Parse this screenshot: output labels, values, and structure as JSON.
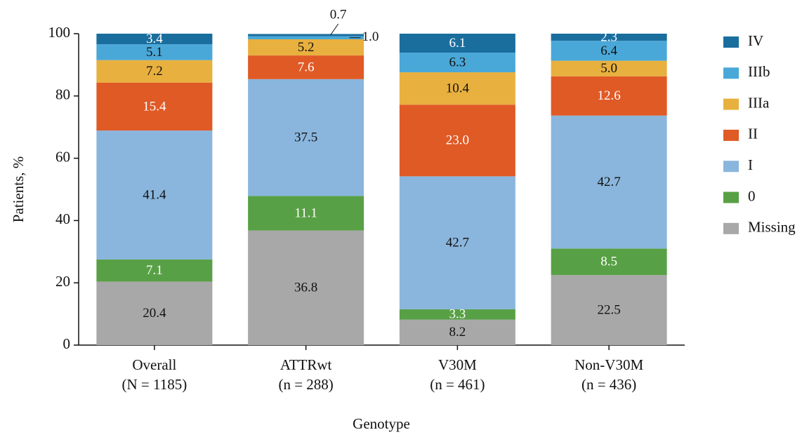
{
  "chart_data": {
    "type": "stacked_bar",
    "ylabel": "Patients, %",
    "xlabel": "Genotype",
    "categories": [
      "Overall",
      "ATTRwt",
      "V30M",
      "Non-V30M"
    ],
    "category_counts": [
      "(N = 1185)",
      "(n = 288)",
      "(n = 461)",
      "(n = 436)"
    ],
    "ylim": [
      0,
      100
    ],
    "yticks": [
      0,
      20,
      40,
      60,
      80,
      100
    ],
    "series": [
      {
        "name": "Missing",
        "color": "#a8a8a8",
        "values": [
          20.4,
          36.8,
          8.2,
          22.5
        ],
        "value_labels": [
          "20.4",
          "36.8",
          "8.2",
          "22.5"
        ]
      },
      {
        "name": "0",
        "color": "#58a045",
        "values": [
          7.1,
          11.1,
          3.3,
          8.5
        ],
        "value_labels": [
          "7.1",
          "11.1",
          "3.3",
          "8.5"
        ]
      },
      {
        "name": "I",
        "color": "#8ab6dd",
        "values": [
          41.4,
          37.5,
          42.7,
          42.7
        ],
        "value_labels": [
          "41.4",
          "37.5",
          "42.7",
          "42.7"
        ]
      },
      {
        "name": "II",
        "color": "#e05a26",
        "values": [
          15.4,
          7.6,
          23.0,
          12.6
        ],
        "value_labels": [
          "15.4",
          "7.6",
          "23.0",
          "12.6"
        ]
      },
      {
        "name": "IIIa",
        "color": "#e8b03e",
        "values": [
          7.2,
          5.2,
          10.4,
          5.0
        ],
        "value_labels": [
          "7.2",
          "5.2",
          "10.4",
          "5.0"
        ]
      },
      {
        "name": "IIIb",
        "color": "#4aa8d8",
        "values": [
          5.1,
          1.0,
          6.3,
          6.4
        ],
        "value_labels": [
          "5.1",
          "1.0",
          "6.3",
          "6.4"
        ]
      },
      {
        "name": "IV",
        "color": "#1a6e9e",
        "values": [
          3.4,
          0.7,
          6.1,
          2.3
        ],
        "value_labels": [
          "3.4",
          "0.7",
          "6.1",
          "2.3"
        ]
      }
    ]
  }
}
